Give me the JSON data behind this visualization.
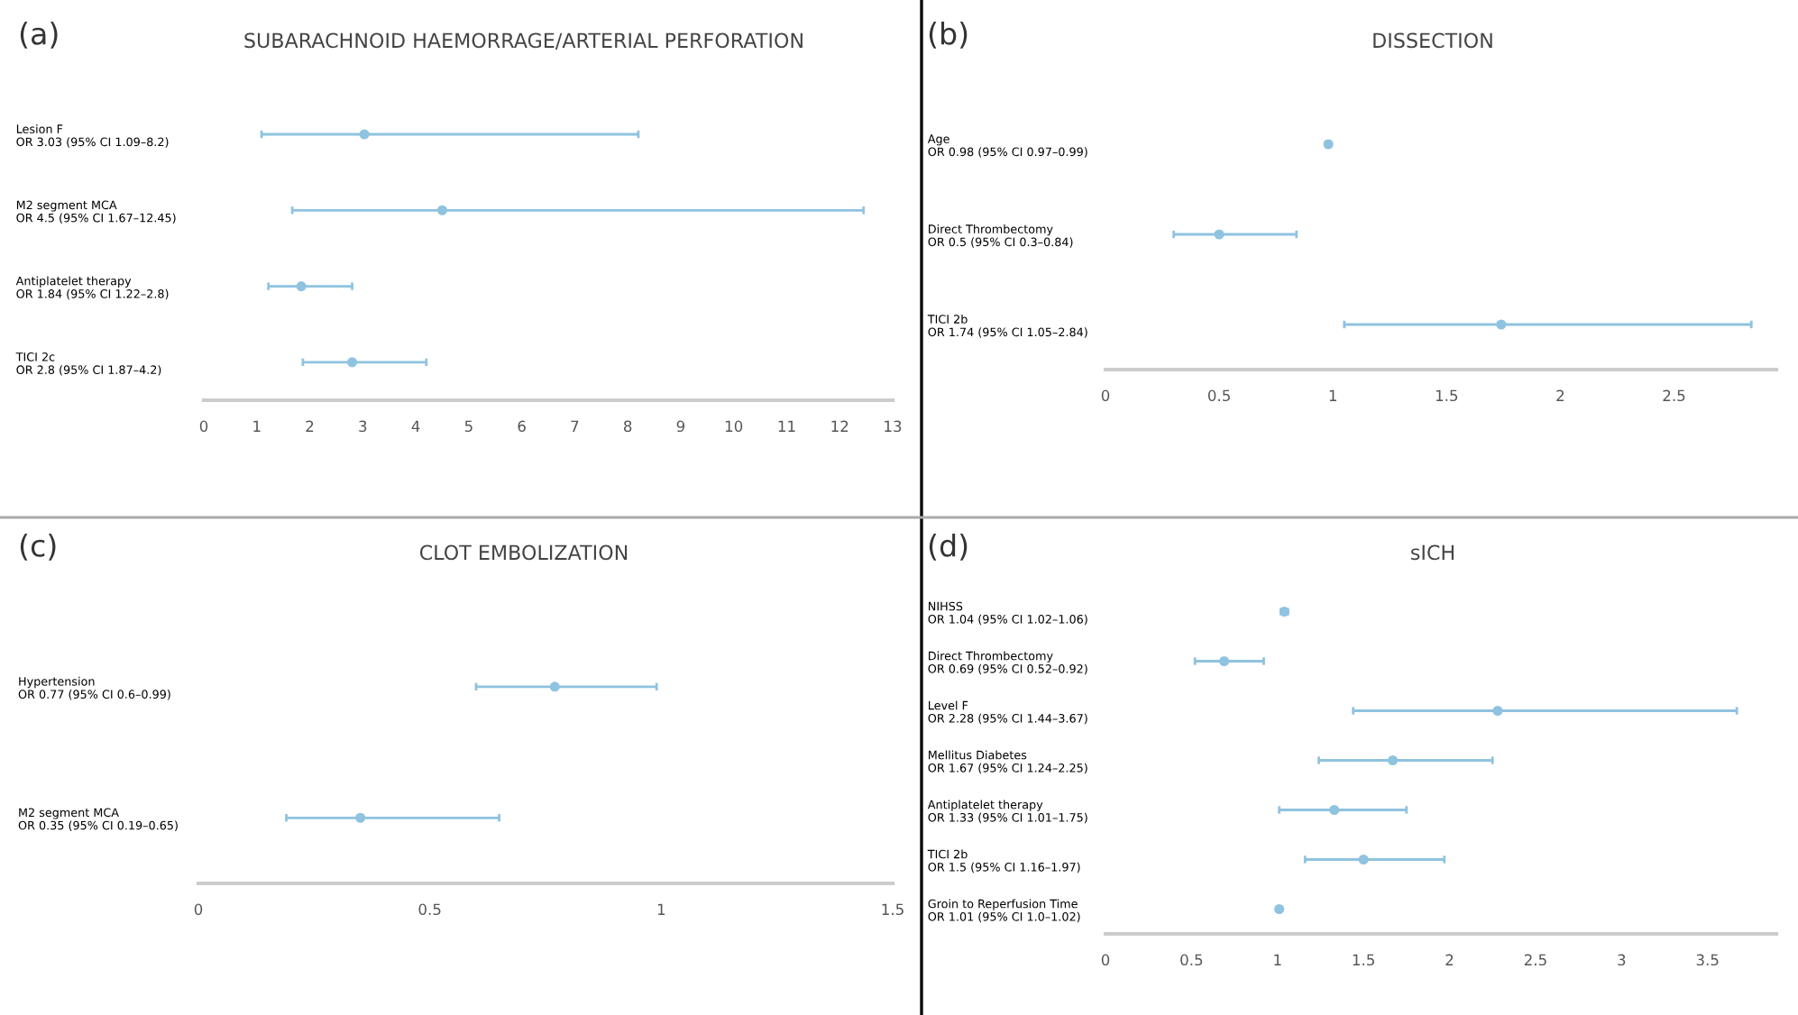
{
  "chart_data": [
    {
      "type": "scatter",
      "orientation": "horizontal",
      "title": "SUBARACHNOID HAEMORRAGE/ARTERIAL PERFORATION",
      "annotations": [
        "(a)"
      ],
      "categories": [
        "Lesion F\nOR 3.03 (95% CI 1.09–8.2)",
        "M2 segment MCA\nOR 4.5 (95% CI 1.67–12.45)",
        "Antiplatelet therapy\nOR 1.84 (95% CI 1.22–2.8)",
        "TICI 2c\nOR 2.8 (95% CI 1.87–4.2)"
      ],
      "values": [
        3.03,
        4.5,
        1.84,
        2.8
      ],
      "errors": [
        [
          1.09,
          8.2
        ],
        [
          1.67,
          12.45
        ],
        [
          1.22,
          2.8
        ],
        [
          1.87,
          4.2
        ]
      ],
      "color": "#8fc3e0",
      "marker": "circle",
      "xlim": [
        0,
        13
      ],
      "xticks": [
        0,
        1,
        2,
        3,
        4,
        5,
        6,
        7,
        8,
        9,
        10,
        11,
        12,
        13
      ],
      "grid": false
    },
    {
      "type": "scatter",
      "orientation": "horizontal",
      "title": "DISSECTION",
      "annotations": [
        "(b)"
      ],
      "categories": [
        "Age\nOR 0.98 (95% CI 0.97–0.99)",
        "Direct Thrombectomy\nOR 0.5 (95% CI 0.3–0.84)",
        "TICI 2b\nOR 1.74 (95% CI 1.05–2.84)"
      ],
      "values": [
        0.98,
        0.5,
        1.74
      ],
      "errors": [
        [
          0.97,
          0.99
        ],
        [
          0.3,
          0.84
        ],
        [
          1.05,
          2.84
        ]
      ],
      "color": "#8fc3e0",
      "marker": "circle",
      "xlim": [
        0,
        2.95
      ],
      "xticks": [
        0,
        0.5,
        1,
        1.5,
        2,
        2.5
      ],
      "grid": false
    },
    {
      "type": "scatter",
      "orientation": "horizontal",
      "title": "CLOT EMBOLIZATION",
      "annotations": [
        "(c)"
      ],
      "categories": [
        "Hypertension\nOR 0.77 (95% CI 0.6–0.99)",
        "M2 segment MCA\nOR 0.35 (95% CI 0.19–0.65)"
      ],
      "values": [
        0.77,
        0.35
      ],
      "errors": [
        [
          0.6,
          0.99
        ],
        [
          0.19,
          0.65
        ]
      ],
      "color": "#8fc3e0",
      "marker": "circle",
      "xlim": [
        0,
        1.5
      ],
      "xticks": [
        0,
        0.5,
        1,
        1.5
      ],
      "grid": false
    },
    {
      "type": "scatter",
      "orientation": "horizontal",
      "title": "sICH",
      "annotations": [
        "(d)"
      ],
      "categories": [
        "NIHSS\nOR 1.04 (95% CI 1.02–1.06)",
        "Direct Thrombectomy\nOR 0.69 (95% CI 0.52–0.92)",
        "Level F\nOR 2.28 (95% CI 1.44–3.67)",
        "Mellitus Diabetes\nOR 1.67 (95% CI 1.24–2.25)",
        "Antiplatelet therapy\nOR 1.33 (95% CI 1.01–1.75)",
        "TICI 2b\nOR 1.5 (95% CI 1.16–1.97)",
        "Groin to Reperfusion Time\nOR 1.01 (95% CI 1.0–1.02)"
      ],
      "values": [
        1.04,
        0.69,
        2.28,
        1.67,
        1.33,
        1.5,
        1.01
      ],
      "errors": [
        [
          1.02,
          1.06
        ],
        [
          0.52,
          0.92
        ],
        [
          1.44,
          3.67
        ],
        [
          1.24,
          2.25
        ],
        [
          1.01,
          1.75
        ],
        [
          1.16,
          1.97
        ],
        [
          1.0,
          1.02
        ]
      ],
      "color": "#8fc3e0",
      "marker": "circle",
      "xlim": [
        0,
        3.9
      ],
      "xticks": [
        0,
        0.5,
        1,
        1.5,
        2,
        2.5,
        3,
        3.5
      ],
      "grid": false
    }
  ]
}
